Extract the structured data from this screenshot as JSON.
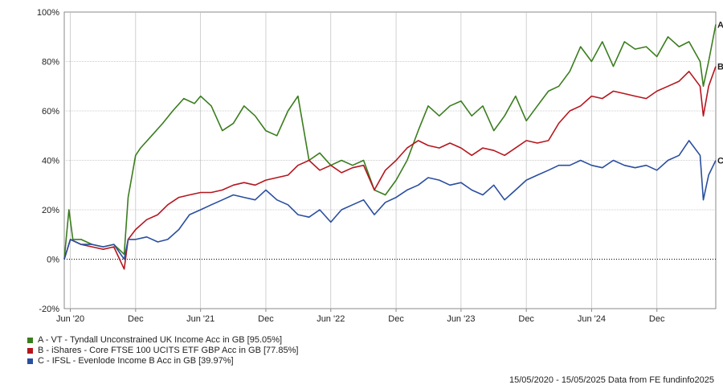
{
  "chart_data": {
    "type": "line",
    "ylim": [
      -20,
      100
    ],
    "y_ticks": [
      -20,
      0,
      20,
      40,
      60,
      80,
      100
    ],
    "y_tick_labels": [
      "-20%",
      "0%",
      "20%",
      "40%",
      "60%",
      "80%",
      "100%"
    ],
    "x_tick_labels": [
      "Jun '20",
      "Dec",
      "Jun '21",
      "Dec",
      "Jun '22",
      "Dec",
      "Jun '23",
      "Dec",
      "Jun '24",
      "Dec"
    ],
    "x_tick_dates": [
      "2020-06-01",
      "2020-12-01",
      "2021-06-01",
      "2021-12-01",
      "2022-06-01",
      "2022-12-01",
      "2023-06-01",
      "2023-12-01",
      "2024-06-01",
      "2024-12-01"
    ],
    "x_range": [
      "2020-05-15",
      "2025-05-15"
    ],
    "grid": true,
    "zero_line": "dotted",
    "series": [
      {
        "name": "A - VT - Tyndall Unconstrained UK Income Acc in GB [95.05%]",
        "end_label": "A",
        "color": "#3a7d1e",
        "dates": [
          "2020-05-15",
          "2020-05-28",
          "2020-06-08",
          "2020-07-01",
          "2020-08-01",
          "2020-09-01",
          "2020-10-01",
          "2020-10-30",
          "2020-11-10",
          "2020-12-01",
          "2020-12-15",
          "2021-01-15",
          "2021-02-15",
          "2021-03-15",
          "2021-04-15",
          "2021-05-15",
          "2021-06-01",
          "2021-07-01",
          "2021-08-01",
          "2021-09-01",
          "2021-10-01",
          "2021-11-01",
          "2021-12-01",
          "2022-01-01",
          "2022-02-01",
          "2022-03-01",
          "2022-04-01",
          "2022-05-01",
          "2022-06-01",
          "2022-07-01",
          "2022-08-01",
          "2022-09-01",
          "2022-10-01",
          "2022-11-01",
          "2022-12-01",
          "2023-01-01",
          "2023-02-01",
          "2023-03-01",
          "2023-04-01",
          "2023-05-01",
          "2023-06-01",
          "2023-07-01",
          "2023-08-01",
          "2023-09-01",
          "2023-10-01",
          "2023-11-01",
          "2023-12-01",
          "2024-01-01",
          "2024-02-01",
          "2024-03-01",
          "2024-04-01",
          "2024-05-01",
          "2024-06-01",
          "2024-07-01",
          "2024-08-01",
          "2024-09-01",
          "2024-10-01",
          "2024-11-01",
          "2024-12-01",
          "2025-01-01",
          "2025-02-01",
          "2025-03-01",
          "2025-04-01",
          "2025-04-10",
          "2025-04-25",
          "2025-05-15"
        ],
        "values": [
          0,
          20,
          8,
          8,
          6,
          5,
          6,
          2,
          25,
          42,
          45,
          50,
          55,
          60,
          65,
          63,
          66,
          62,
          52,
          55,
          62,
          58,
          52,
          50,
          60,
          66,
          40,
          43,
          38,
          40,
          38,
          40,
          28,
          26,
          32,
          40,
          52,
          62,
          58,
          62,
          64,
          58,
          62,
          52,
          58,
          66,
          56,
          62,
          68,
          70,
          76,
          86,
          80,
          88,
          78,
          88,
          85,
          86,
          82,
          90,
          86,
          88,
          80,
          70,
          80,
          95
        ]
      },
      {
        "name": "B - iShares - Core FTSE 100 UCITS ETF GBP Acc in GB [77.85%]",
        "end_label": "B",
        "color": "#b5161e",
        "dates": [
          "2020-05-15",
          "2020-06-01",
          "2020-07-01",
          "2020-08-01",
          "2020-09-01",
          "2020-10-01",
          "2020-10-30",
          "2020-11-10",
          "2020-12-01",
          "2021-01-01",
          "2021-02-01",
          "2021-03-01",
          "2021-04-01",
          "2021-05-01",
          "2021-06-01",
          "2021-07-01",
          "2021-08-01",
          "2021-09-01",
          "2021-10-01",
          "2021-11-01",
          "2021-12-01",
          "2022-01-01",
          "2022-02-01",
          "2022-03-01",
          "2022-04-01",
          "2022-05-01",
          "2022-06-01",
          "2022-07-01",
          "2022-08-01",
          "2022-09-01",
          "2022-10-01",
          "2022-11-01",
          "2022-12-01",
          "2023-01-01",
          "2023-02-01",
          "2023-03-01",
          "2023-04-01",
          "2023-05-01",
          "2023-06-01",
          "2023-07-01",
          "2023-08-01",
          "2023-09-01",
          "2023-10-01",
          "2023-11-01",
          "2023-12-01",
          "2024-01-01",
          "2024-02-01",
          "2024-03-01",
          "2024-04-01",
          "2024-05-01",
          "2024-06-01",
          "2024-07-01",
          "2024-08-01",
          "2024-09-01",
          "2024-10-01",
          "2024-11-01",
          "2024-12-01",
          "2025-01-01",
          "2025-02-01",
          "2025-03-01",
          "2025-04-01",
          "2025-04-10",
          "2025-04-25",
          "2025-05-15"
        ],
        "values": [
          0,
          8,
          6,
          5,
          4,
          5,
          -4,
          8,
          12,
          16,
          18,
          22,
          25,
          26,
          27,
          27,
          28,
          30,
          31,
          30,
          32,
          33,
          34,
          38,
          40,
          36,
          38,
          35,
          37,
          38,
          28,
          36,
          40,
          45,
          48,
          46,
          45,
          47,
          45,
          42,
          45,
          44,
          42,
          45,
          48,
          47,
          48,
          55,
          60,
          62,
          66,
          65,
          68,
          67,
          66,
          65,
          68,
          70,
          72,
          76,
          70,
          58,
          70,
          78
        ]
      },
      {
        "name": "C - IFSL - Evenlode Income B Acc in GB [39.97%]",
        "end_label": "C",
        "color": "#2a4ea0",
        "dates": [
          "2020-05-15",
          "2020-06-01",
          "2020-07-01",
          "2020-08-01",
          "2020-09-01",
          "2020-10-01",
          "2020-10-30",
          "2020-11-10",
          "2020-12-01",
          "2021-01-01",
          "2021-02-01",
          "2021-03-01",
          "2021-04-01",
          "2021-05-01",
          "2021-06-01",
          "2021-07-01",
          "2021-08-01",
          "2021-09-01",
          "2021-10-01",
          "2021-11-01",
          "2021-12-01",
          "2022-01-01",
          "2022-02-01",
          "2022-03-01",
          "2022-04-01",
          "2022-05-01",
          "2022-06-01",
          "2022-07-01",
          "2022-08-01",
          "2022-09-01",
          "2022-10-01",
          "2022-11-01",
          "2022-12-01",
          "2023-01-01",
          "2023-02-01",
          "2023-03-01",
          "2023-04-01",
          "2023-05-01",
          "2023-06-01",
          "2023-07-01",
          "2023-08-01",
          "2023-09-01",
          "2023-10-01",
          "2023-11-01",
          "2023-12-01",
          "2024-01-01",
          "2024-02-01",
          "2024-03-01",
          "2024-04-01",
          "2024-05-01",
          "2024-06-01",
          "2024-07-01",
          "2024-08-01",
          "2024-09-01",
          "2024-10-01",
          "2024-11-01",
          "2024-12-01",
          "2025-01-01",
          "2025-02-01",
          "2025-03-01",
          "2025-04-01",
          "2025-04-10",
          "2025-04-25",
          "2025-05-15"
        ],
        "values": [
          0,
          8,
          6,
          6,
          5,
          6,
          0,
          8,
          8,
          9,
          7,
          8,
          12,
          18,
          20,
          22,
          24,
          26,
          25,
          24,
          28,
          24,
          22,
          18,
          17,
          20,
          15,
          20,
          22,
          24,
          18,
          23,
          25,
          28,
          30,
          33,
          32,
          30,
          31,
          28,
          26,
          30,
          24,
          28,
          32,
          34,
          36,
          38,
          38,
          40,
          38,
          37,
          40,
          38,
          37,
          38,
          36,
          40,
          42,
          48,
          42,
          24,
          34,
          40
        ]
      }
    ]
  },
  "footer": "15/05/2020 - 15/05/2025 Data from FE fundinfo2025"
}
